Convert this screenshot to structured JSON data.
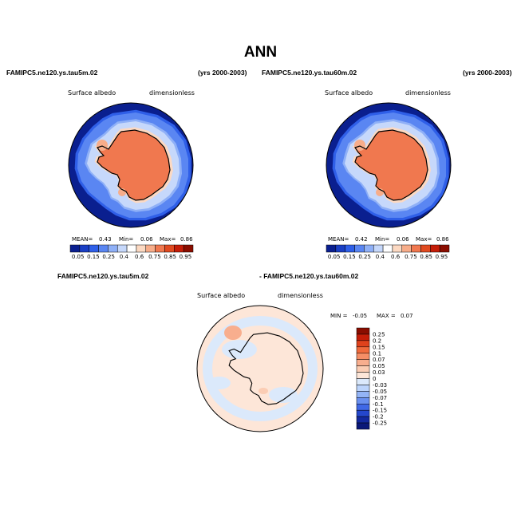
{
  "page_title": "ANN",
  "panels": {
    "left": {
      "case_name": "FAMIPC5.ne120.ys.tau5m.02",
      "years": "(yrs 2000-2003)",
      "variable": "Surface albedo",
      "units": "dimensionless",
      "stats": {
        "mean_label": "MEAN=",
        "mean": "0.43",
        "min_label": "Min=",
        "min": "0.06",
        "max_label": "Max=",
        "max": "0.86"
      }
    },
    "right": {
      "case_name": "FAMIPC5.ne120.ys.tau60m.02",
      "years": "(yrs 2000-2003)",
      "variable": "Surface albedo",
      "units": "dimensionless",
      "stats": {
        "mean_label": "MEAN=",
        "mean": "0.42",
        "min_label": "Min=",
        "min": "0.06",
        "max_label": "Max=",
        "max": "0.86"
      }
    },
    "diff": {
      "case_a": "FAMIPC5.ne120.ys.tau5m.02",
      "case_b": "- FAMIPC5.ne120.ys.tau60m.02",
      "variable": "Surface albedo",
      "units": "dimensionless",
      "stats": {
        "min_label": "MIN =",
        "min": "-0.05",
        "max_label": "MAX =",
        "max": "0.07"
      }
    }
  },
  "chart_data": [
    {
      "type": "heatmap",
      "projection": "polar-stereographic-south",
      "title": "",
      "variable": "Surface albedo",
      "units": "dimensionless",
      "colorbar": {
        "orientation": "horizontal",
        "levels": [
          "0.05",
          "0.15",
          "0.25",
          "0.4",
          "0.6",
          "0.75",
          "0.85",
          "0.95"
        ],
        "colors": [
          "#0a1f8f",
          "#1a3fc4",
          "#2f5fe8",
          "#5a86f2",
          "#8fb0f7",
          "#c6d8fb",
          "#ffffff",
          "#fcd9c2",
          "#f7ad8a",
          "#f0784f",
          "#e04a20",
          "#c41d08",
          "#8a0d00"
        ]
      },
      "stats": {
        "mean": 0.43,
        "min": 0.06,
        "max": 0.86
      }
    },
    {
      "type": "heatmap",
      "projection": "polar-stereographic-south",
      "title": "",
      "variable": "Surface albedo",
      "units": "dimensionless",
      "colorbar": {
        "orientation": "horizontal",
        "levels": [
          "0.05",
          "0.15",
          "0.25",
          "0.4",
          "0.6",
          "0.75",
          "0.85",
          "0.95"
        ],
        "colors": [
          "#0a1f8f",
          "#1a3fc4",
          "#2f5fe8",
          "#5a86f2",
          "#8fb0f7",
          "#c6d8fb",
          "#ffffff",
          "#fcd9c2",
          "#f7ad8a",
          "#f0784f",
          "#e04a20",
          "#c41d08",
          "#8a0d00"
        ]
      },
      "stats": {
        "mean": 0.42,
        "min": 0.06,
        "max": 0.86
      }
    },
    {
      "type": "heatmap",
      "projection": "polar-stereographic-south",
      "title": "",
      "variable": "Surface albedo",
      "units": "dimensionless",
      "colorbar": {
        "orientation": "vertical",
        "levels": [
          "0.25",
          "0.2",
          "0.15",
          "0.1",
          "0.07",
          "0.05",
          "0.03",
          "0",
          "-0.03",
          "-0.05",
          "-0.07",
          "-0.1",
          "-0.15",
          "-0.2",
          "-0.25"
        ],
        "colors": [
          "#8a0d00",
          "#c41d08",
          "#e0421c",
          "#f06a3c",
          "#f58e66",
          "#f8ae8e",
          "#fbcdb4",
          "#fde6d8",
          "#dbe9fb",
          "#bcd4fb",
          "#93b4f6",
          "#6a90ef",
          "#3f68e6",
          "#2447cc",
          "#13299f",
          "#0a1878"
        ]
      },
      "stats": {
        "min": -0.05,
        "max": 0.07
      }
    }
  ]
}
